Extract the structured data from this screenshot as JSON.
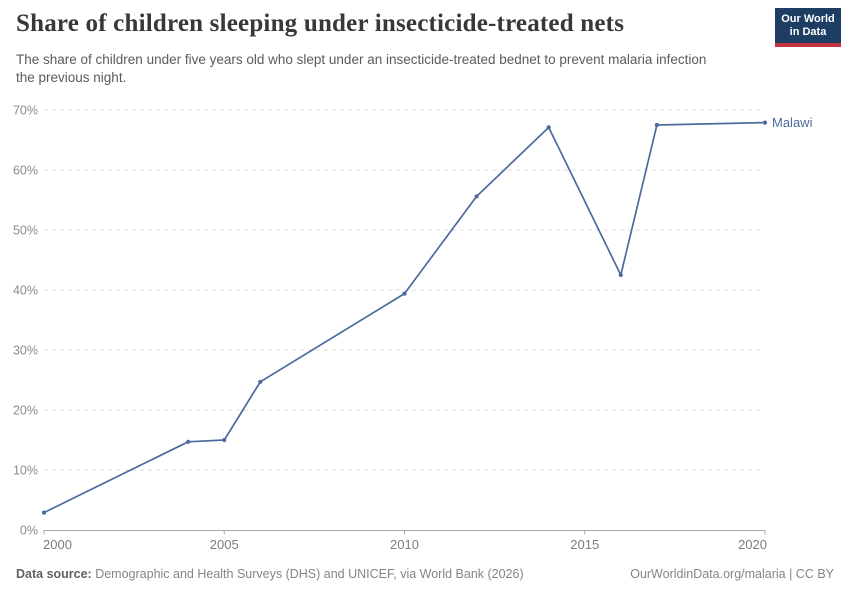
{
  "chart_data": {
    "type": "line",
    "title": "Share of children sleeping under insecticide-treated nets",
    "subtitle": "The share of children under five years old who slept under an insecticide-treated bednet to prevent malaria infection the previous night.",
    "series": [
      {
        "name": "Malawi",
        "color": "#4C6A9C",
        "points": [
          [
            2000,
            2.9
          ],
          [
            2004,
            14.7
          ],
          [
            2005,
            15.0
          ],
          [
            2006,
            24.7
          ],
          [
            2010,
            39.4
          ],
          [
            2012,
            55.6
          ],
          [
            2014,
            67.1
          ],
          [
            2016,
            42.5
          ],
          [
            2017,
            67.5
          ],
          [
            2020,
            67.9
          ]
        ]
      }
    ],
    "xlabel": "",
    "ylabel": "",
    "xlim": [
      2000,
      2020
    ],
    "ylim": [
      0,
      70
    ],
    "x_ticks": [
      2000,
      2005,
      2010,
      2015,
      2020
    ],
    "y_ticks": [
      0,
      10,
      20,
      30,
      40,
      50,
      60,
      70
    ],
    "y_tick_suffix": "%",
    "grid": "horizontal-dashed",
    "legend_position": "entity label at right end of line",
    "colors": {
      "gridline": "#dedede",
      "axis_line": "#a8a8a8",
      "y_tick_label": "#8c8c8c",
      "x_tick_label": "#7d7d7d"
    }
  },
  "header": {
    "logo": {
      "line1": "Our World",
      "line2": "in Data",
      "bg_color": "#1d3d63",
      "stripe_color": "#c5333f"
    }
  },
  "footer": {
    "source_label": "Data source:",
    "source_text": " Demographic and Health Surveys (DHS) and UNICEF, via World Bank (2026)",
    "credit": "OurWorldinData.org/malaria | CC BY"
  }
}
